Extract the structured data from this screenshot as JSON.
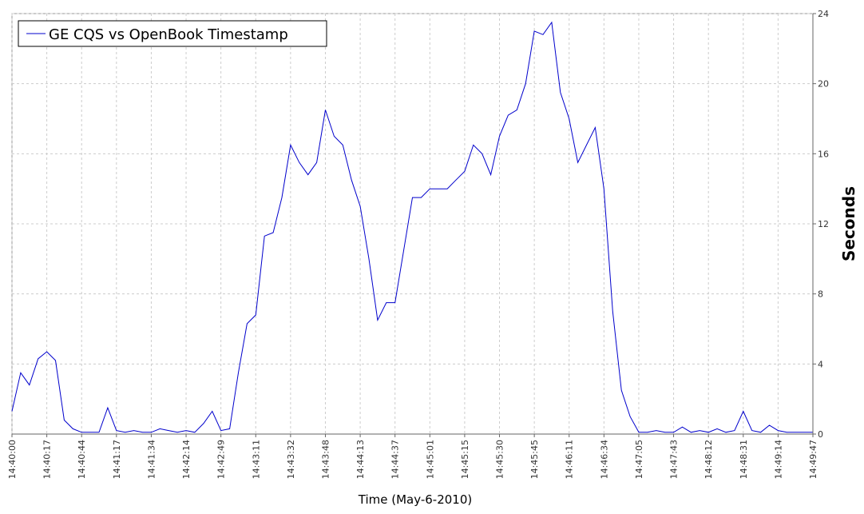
{
  "chart_data": {
    "type": "line",
    "x_label": "Time (May-6-2010)",
    "y_label": "Seconds",
    "categories": [
      "14:40:00",
      null,
      null,
      null,
      "14:40:17",
      null,
      null,
      null,
      "14:40:44",
      null,
      null,
      null,
      "14:41:17",
      null,
      null,
      null,
      "14:41:34",
      null,
      null,
      null,
      "14:42:14",
      null,
      null,
      null,
      "14:42:49",
      null,
      null,
      null,
      "14:43:11",
      null,
      null,
      null,
      "14:43:32",
      null,
      null,
      null,
      "14:43:48",
      null,
      null,
      null,
      "14:44:13",
      null,
      null,
      null,
      "14:44:37",
      null,
      null,
      null,
      "14:45:01",
      null,
      null,
      null,
      "14:45:15",
      null,
      null,
      null,
      "14:45:30",
      null,
      null,
      null,
      "14:45:45",
      null,
      null,
      null,
      "14:46:11",
      null,
      null,
      null,
      "14:46:34",
      null,
      null,
      null,
      "14:47:05",
      null,
      null,
      null,
      "14:47:43",
      null,
      null,
      null,
      "14:48:12",
      null,
      null,
      null,
      "14:48:31",
      null,
      null,
      null,
      "14:49:14",
      null,
      null,
      null,
      "14:49:47"
    ],
    "series": [
      {
        "name": "GE CQS vs OpenBook Timestamp",
        "color": "#0000cc",
        "values": [
          1.3,
          3.5,
          2.8,
          4.3,
          4.7,
          4.2,
          0.8,
          0.3,
          0.1,
          0.1,
          0.1,
          1.5,
          0.2,
          0.1,
          0.2,
          0.1,
          0.1,
          0.3,
          0.2,
          0.1,
          0.2,
          0.1,
          0.6,
          1.3,
          0.2,
          0.3,
          3.5,
          6.3,
          6.8,
          11.3,
          11.5,
          13.5,
          16.5,
          15.5,
          14.8,
          15.5,
          18.5,
          17.0,
          16.5,
          14.5,
          13.0,
          10.0,
          6.5,
          7.5,
          7.5,
          10.5,
          13.5,
          13.5,
          14.0,
          14.0,
          14.0,
          14.5,
          15.0,
          16.5,
          16.0,
          14.8,
          17.0,
          18.2,
          18.5,
          20.0,
          23.0,
          22.8,
          23.5,
          19.5,
          18.0,
          15.5,
          16.5,
          17.5,
          14.0,
          7.0,
          2.5,
          1.0,
          0.1,
          0.1,
          0.2,
          0.1,
          0.1,
          0.4,
          0.1,
          0.2,
          0.1,
          0.3,
          0.1,
          0.2,
          1.3,
          0.2,
          0.1,
          0.5,
          0.2,
          0.1,
          0.1,
          0.1,
          0.1
        ]
      }
    ],
    "ylim": [
      0,
      24
    ],
    "yticks": [
      0,
      4,
      8,
      12,
      16,
      20,
      24
    ],
    "y_axis_side": "right",
    "grid": true,
    "legend": "upper left"
  }
}
